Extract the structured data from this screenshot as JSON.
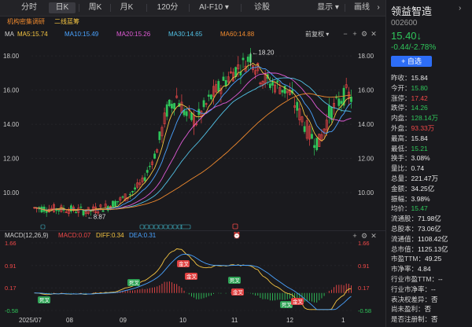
{
  "toolbar": {
    "tabs": [
      "分时",
      "日K",
      "周K",
      "月K",
      "120分",
      "AI-F10",
      "诊股"
    ],
    "active_tab": "日K",
    "display_label": "显示",
    "draw_label": "画线"
  },
  "broker_tags": [
    "机构密集调研",
    "二线蓝筹"
  ],
  "ma_legend": {
    "label": "MA",
    "items": [
      {
        "text": "MA5:15.74",
        "color": "#f5c542"
      },
      {
        "text": "MA10:15.49",
        "color": "#4aa3ff"
      },
      {
        "text": "MA20:15.26",
        "color": "#e05bd6"
      },
      {
        "text": "MA30:14.65",
        "color": "#52c2e6"
      },
      {
        "text": "MA60:14.88",
        "color": "#f08a2e"
      }
    ],
    "adjust_label": "前复权"
  },
  "price_axis": {
    "left": [
      "18.00",
      "16.00",
      "14.00",
      "12.00",
      "10.00"
    ],
    "right": [
      "18.00",
      "16.00",
      "14.00",
      "12.00",
      "10.00"
    ]
  },
  "annotations": {
    "high": "18.20",
    "low": "8.87"
  },
  "macd_legend": {
    "label": "MACD(12,26,9)",
    "items": [
      {
        "text": "MACD:0.07",
        "color": "#f04848"
      },
      {
        "text": "DIFF:0.34",
        "color": "#f5c542"
      },
      {
        "text": "DEA:0.31",
        "color": "#4aa3ff"
      }
    ]
  },
  "macd_axis": {
    "left": [
      "1.66",
      "0.91",
      "0.17",
      "-0.58"
    ],
    "right": [
      "1.66",
      "0.91",
      "0.17",
      "-0.58"
    ]
  },
  "macd_signals": [
    {
      "text": "死叉",
      "kind": "death"
    },
    {
      "text": "死叉",
      "kind": "death"
    },
    {
      "text": "金叉",
      "kind": "golden"
    },
    {
      "text": "金叉",
      "kind": "golden"
    },
    {
      "text": "死叉",
      "kind": "death"
    },
    {
      "text": "金叉",
      "kind": "golden"
    },
    {
      "text": "死叉",
      "kind": "death"
    },
    {
      "text": "金叉",
      "kind": "golden"
    }
  ],
  "x_labels": [
    "2025/07",
    "08",
    "09",
    "10",
    "11",
    "12",
    "1"
  ],
  "stock": {
    "name": "领益智造",
    "code": "002600",
    "price": "15.40",
    "arrow": "↓",
    "change": "-0.44/-2.78%",
    "add_button": "+ 自选"
  },
  "stats": [
    {
      "label": "昨收：",
      "value": "15.84",
      "color": "white"
    },
    {
      "label": "今开：",
      "value": "15.80",
      "color": "green"
    },
    {
      "label": "涨停：",
      "value": "17.42",
      "color": "red"
    },
    {
      "label": "跌停：",
      "value": "14.26",
      "color": "green"
    },
    {
      "label": "内盘：",
      "value": "128.14万",
      "color": "green"
    },
    {
      "label": "外盘：",
      "value": "93.33万",
      "color": "red"
    },
    {
      "label": "最高：",
      "value": "15.84",
      "color": "white"
    },
    {
      "label": "最低：",
      "value": "15.21",
      "color": "green"
    },
    {
      "label": "换手：",
      "value": "3.08%",
      "color": "white"
    },
    {
      "label": "量比：",
      "value": "0.74",
      "color": "white"
    },
    {
      "label": "总量：",
      "value": "221.47万",
      "color": "white"
    },
    {
      "label": "金额：",
      "value": "34.25亿",
      "color": "white"
    },
    {
      "label": "振幅：",
      "value": "3.98%",
      "color": "white"
    },
    {
      "label": "均价：",
      "value": "15.47",
      "color": "green"
    },
    {
      "label": "流通股：",
      "value": "71.98亿",
      "color": "white"
    },
    {
      "label": "总股本：",
      "value": "73.06亿",
      "color": "white"
    },
    {
      "label": "流通值：",
      "value": "1108.42亿",
      "color": "white"
    },
    {
      "label": "总市值：",
      "value": "1125.13亿",
      "color": "white"
    },
    {
      "label": "市盈TTM：",
      "value": "49.25",
      "color": "white"
    },
    {
      "label": "市净率：",
      "value": "4.84",
      "color": "white"
    },
    {
      "label": "行业市盈TTM：",
      "value": "--",
      "color": "white"
    },
    {
      "label": "行业市净率：",
      "value": "--",
      "color": "white"
    },
    {
      "label": "表决权差异：",
      "value": "否",
      "color": "white"
    },
    {
      "label": "尚未盈利：",
      "value": "否",
      "color": "white"
    },
    {
      "label": "是否注册制：",
      "value": "否",
      "color": "white"
    }
  ]
}
